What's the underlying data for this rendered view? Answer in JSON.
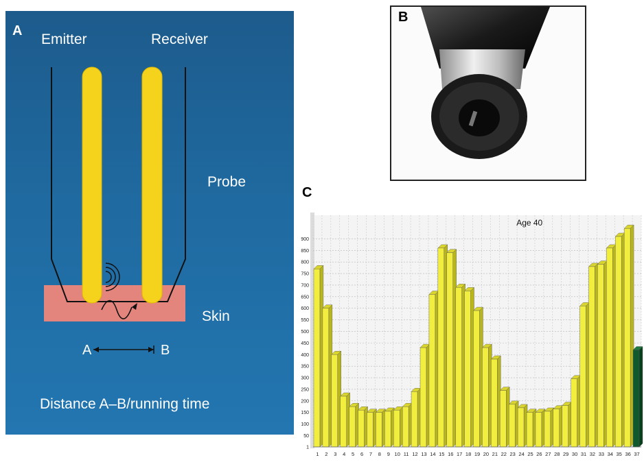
{
  "panel_a": {
    "letter": "A",
    "emitter": "Emitter",
    "receiver": "Receiver",
    "probe": "Probe",
    "skin": "Skin",
    "point_a": "A",
    "point_b": "B",
    "caption": "Distance A–B/running time",
    "colors": {
      "background": "#1f6aa0",
      "rod": "#f5d21c",
      "skin": "#e3847d"
    }
  },
  "panel_b": {
    "letter": "B"
  },
  "panel_c": {
    "letter": "C"
  },
  "chart_data": {
    "type": "bar",
    "title": "Age 40",
    "xlabel": "",
    "ylabel": "",
    "categories": [
      "1",
      "2",
      "3",
      "4",
      "5",
      "6",
      "7",
      "8",
      "9",
      "10",
      "11",
      "12",
      "13",
      "14",
      "15",
      "16",
      "17",
      "18",
      "19",
      "20",
      "21",
      "22",
      "23",
      "24",
      "25",
      "26",
      "27",
      "28",
      "29",
      "30",
      "31",
      "32",
      "33",
      "34",
      "35",
      "36",
      "37"
    ],
    "values": [
      770,
      600,
      400,
      220,
      175,
      160,
      150,
      150,
      155,
      160,
      175,
      240,
      430,
      660,
      860,
      840,
      690,
      675,
      590,
      430,
      380,
      245,
      185,
      170,
      150,
      150,
      155,
      165,
      180,
      295,
      610,
      780,
      790,
      860,
      910,
      945,
      420
    ],
    "y_ticks": [
      1,
      50,
      100,
      150,
      200,
      250,
      300,
      350,
      400,
      450,
      500,
      550,
      600,
      650,
      700,
      750,
      800,
      850,
      900
    ],
    "ylim": [
      1,
      990
    ],
    "bar_color": "#f2ee40",
    "last_bar_color": "#0f5a2c",
    "grid": true
  }
}
